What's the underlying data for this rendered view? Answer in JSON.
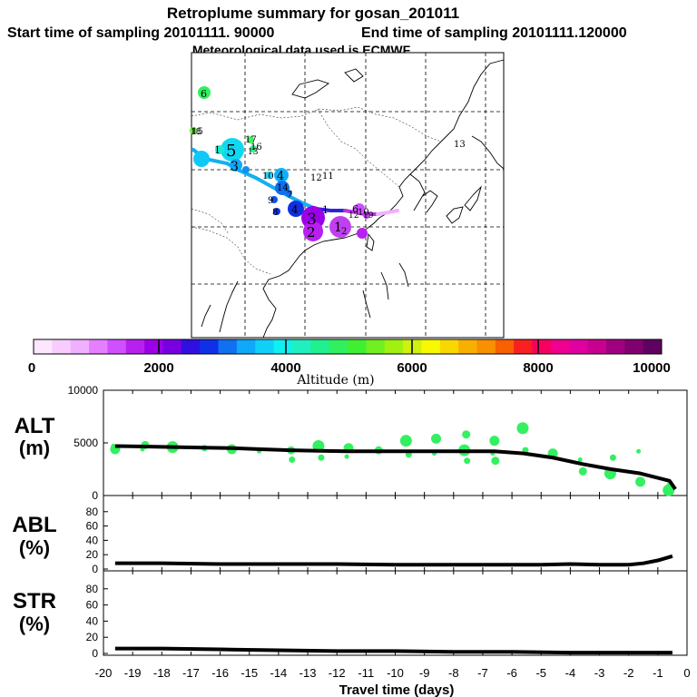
{
  "header": {
    "title": "Retroplume summary for gosan_201011",
    "start_label": "Start time of sampling 20101111. 90000",
    "end_label": "End time of sampling 20101111.120000",
    "met_label": "Meteorological data used is ECMWF"
  },
  "colorbar": {
    "title": "Altitude (m)",
    "ticks": [
      "0",
      "2000",
      "4000",
      "6000",
      "8000",
      "10000"
    ],
    "colors": [
      "#ffe6ff",
      "#f8ccff",
      "#f0b0ff",
      "#e480ff",
      "#d050ff",
      "#b820f0",
      "#9c00e8",
      "#7800e0",
      "#3010e0",
      "#1030e8",
      "#1070f0",
      "#10a8f8",
      "#10d0f8",
      "#10f0f0",
      "#20f0c0",
      "#20f090",
      "#30f060",
      "#40f030",
      "#70f020",
      "#a0f010",
      "#d0f010",
      "#f8f800",
      "#f8d800",
      "#f8b000",
      "#f89000",
      "#f86000",
      "#f82020",
      "#f80060",
      "#f00090",
      "#e000a0",
      "#c80090",
      "#a00080",
      "#800070",
      "#600060"
    ]
  },
  "map": {
    "labels": [
      "6",
      "13",
      "17",
      "16",
      "15",
      "1",
      "5",
      "3",
      "10",
      "4",
      "14",
      "12",
      "11",
      "9",
      "8",
      "7",
      "4",
      "3",
      "2",
      "1",
      "1",
      "2",
      "6",
      "10",
      "19",
      "12",
      "18",
      "13"
    ],
    "colors": {
      "bg": "#ffffff",
      "grid": "#000000",
      "coast": "#000000"
    }
  },
  "chart_data": [
    {
      "type": "scatter",
      "title": "ALT (m)",
      "ylabel_line1": "ALT",
      "ylabel_line2": "(m)",
      "ylim": [
        0,
        10000
      ],
      "yticks": [
        "10000",
        "5000",
        "0"
      ],
      "x": [
        -19.6,
        -18.6,
        -17.6,
        -16.6,
        -15.6,
        -14.6,
        -13.6,
        -12.6,
        -11.6,
        -10.6,
        -9.6,
        -8.6,
        -7.6,
        -6.6,
        -5.6,
        -4.6,
        -3.6,
        -2.6,
        -1.6,
        -0.6,
        -0.4
      ],
      "values": [
        4700,
        4650,
        4600,
        4550,
        4500,
        4400,
        4300,
        4250,
        4200,
        4200,
        4200,
        4200,
        4200,
        4200,
        4000,
        3600,
        3000,
        2500,
        2100,
        1400,
        600
      ],
      "particles": [
        {
          "x": -19.6,
          "y": 4700
        },
        {
          "x": -18.6,
          "y": 4800
        },
        {
          "x": -17.6,
          "y": 4600
        },
        {
          "x": -16.6,
          "y": 4500
        },
        {
          "x": -15.6,
          "y": 4400
        },
        {
          "x": -14.6,
          "y": 4200
        },
        {
          "x": -13.6,
          "y": 4300
        },
        {
          "x": -12.6,
          "y": 4700
        },
        {
          "x": -12.6,
          "y": 3600
        },
        {
          "x": -11.6,
          "y": 4500
        },
        {
          "x": -11.6,
          "y": 3700
        },
        {
          "x": -10.6,
          "y": 4300
        },
        {
          "x": -9.6,
          "y": 5200
        },
        {
          "x": -9.6,
          "y": 3900
        },
        {
          "x": -8.6,
          "y": 5400
        },
        {
          "x": -8.6,
          "y": 4000
        },
        {
          "x": -7.6,
          "y": 5800
        },
        {
          "x": -7.6,
          "y": 4300
        },
        {
          "x": -7.6,
          "y": 3300
        },
        {
          "x": -6.6,
          "y": 5200
        },
        {
          "x": -6.6,
          "y": 4000
        },
        {
          "x": -6.6,
          "y": 3300
        },
        {
          "x": -5.6,
          "y": 6400
        },
        {
          "x": -5.6,
          "y": 4300
        },
        {
          "x": -4.6,
          "y": 4000
        },
        {
          "x": -3.6,
          "y": 3400
        },
        {
          "x": -3.6,
          "y": 2300
        },
        {
          "x": -2.6,
          "y": 2100
        },
        {
          "x": -2.6,
          "y": 3600
        },
        {
          "x": -1.6,
          "y": 1300
        },
        {
          "x": -1.6,
          "y": 4200
        },
        {
          "x": -0.6,
          "y": 900
        },
        {
          "x": -0.6,
          "y": 500
        },
        {
          "x": -13.6,
          "y": 3400
        },
        {
          "x": -19.6,
          "y": 4400
        },
        {
          "x": -18.6,
          "y": 4400
        }
      ]
    },
    {
      "type": "line",
      "title": "ABL (%)",
      "ylabel_line1": "ABL",
      "ylabel_line2": "(%)",
      "ylim": [
        0,
        100
      ],
      "yticks": [
        "80",
        "60",
        "40",
        "20",
        "0"
      ],
      "x": [
        -19.6,
        -18,
        -16,
        -14,
        -12,
        -10,
        -8,
        -6,
        -5,
        -4,
        -3,
        -2,
        -1.5,
        -1,
        -0.5
      ],
      "values": [
        8,
        8,
        7,
        7,
        7,
        6,
        6,
        6,
        6,
        7,
        6,
        6,
        8,
        12,
        18
      ]
    },
    {
      "type": "line",
      "title": "STR (%)",
      "ylabel_line1": "STR",
      "ylabel_line2": "(%)",
      "ylim": [
        0,
        100
      ],
      "yticks": [
        "80",
        "60",
        "40",
        "20",
        "0"
      ],
      "x": [
        -19.6,
        -18,
        -16,
        -14,
        -12,
        -10,
        -8,
        -6,
        -4,
        -2,
        -1,
        -0.5
      ],
      "values": [
        6,
        6,
        5,
        4,
        3,
        3,
        2,
        2,
        1,
        1,
        1,
        1
      ]
    }
  ],
  "xaxis": {
    "ticks": [
      "-20",
      "-19",
      "-18",
      "-17",
      "-16",
      "-15",
      "-14",
      "-13",
      "-12",
      "-11",
      "-10",
      "-9",
      "-8",
      "-7",
      "-6",
      "-5",
      "-4",
      "-3",
      "-2",
      "-1",
      "0"
    ],
    "xlim": [
      -20,
      0
    ],
    "label": "Travel time (days)"
  }
}
